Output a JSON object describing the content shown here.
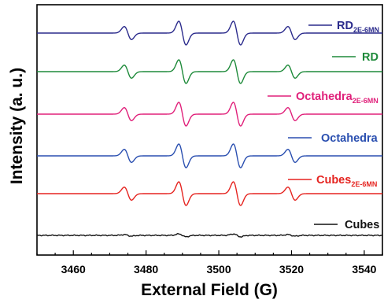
{
  "chart_data": {
    "type": "line",
    "xlabel": "External Field (G)",
    "ylabel": "Intensity (a. u.)",
    "xlim": [
      3450,
      3545
    ],
    "x_ticks": [
      3460,
      3480,
      3500,
      3520,
      3540
    ],
    "y_ticks_shown": false,
    "grid": false,
    "legend": "inline labels at right, one per trace",
    "series": [
      {
        "name": "RD",
        "name_sub": "2E-6MN",
        "color": "#2b2b8c",
        "amplitude": 1.0
      },
      {
        "name": "RD",
        "name_sub": "",
        "color": "#1e8a3a",
        "amplitude": 1.0
      },
      {
        "name": "Octahedra",
        "name_sub": "2E-6MN",
        "color": "#e0207a",
        "amplitude": 1.0
      },
      {
        "name": "Octahedra",
        "name_sub": "",
        "color": "#2a4fb0",
        "amplitude": 1.0
      },
      {
        "name": "Cubes",
        "name_sub": "2E-6MN",
        "color": "#e52420",
        "amplitude": 1.0
      },
      {
        "name": "Cubes",
        "name_sub": "",
        "color": "#111111",
        "amplitude": 0.12
      }
    ],
    "peaks_gauss": [
      3475,
      3490,
      3505,
      3520
    ],
    "peak_relative_heights": [
      0.55,
      1.0,
      1.0,
      0.55
    ]
  }
}
